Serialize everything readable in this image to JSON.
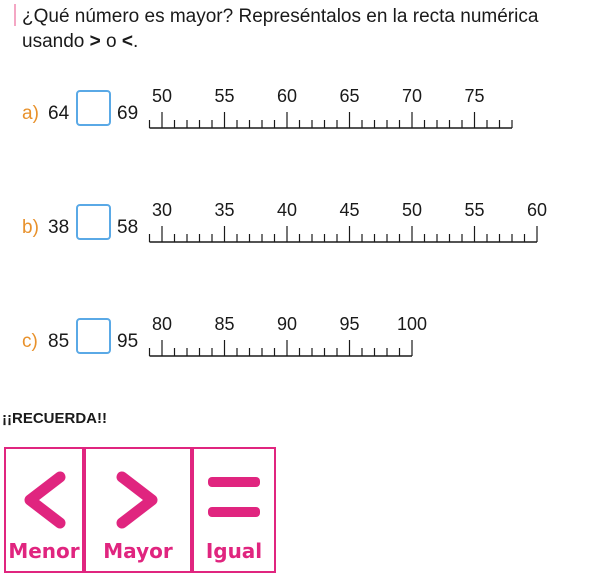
{
  "question": {
    "line1": "¿Qué número es mayor? Represéntalos en la recta numérica",
    "line2_prefix": "usando",
    "gt": ">",
    "conj": "o",
    "lt": "<",
    "end": "."
  },
  "exercises": [
    {
      "label": "a)",
      "left": "64",
      "right": "69",
      "ticks": [
        "50",
        "55",
        "60",
        "65",
        "70",
        "75"
      ]
    },
    {
      "label": "b)",
      "left": "38",
      "right": "58",
      "ticks": [
        "30",
        "35",
        "40",
        "45",
        "50",
        "55",
        "60"
      ]
    },
    {
      "label": "c)",
      "left": "85",
      "right": "95",
      "ticks": [
        "80",
        "85",
        "90",
        "95",
        "100"
      ]
    }
  ],
  "reminder": {
    "title": "¡¡RECUERDA!!",
    "cards": [
      {
        "symbol": "<",
        "label": "Menor"
      },
      {
        "symbol": ">",
        "label": "Mayor"
      },
      {
        "symbol": "=",
        "label": "Igual"
      }
    ]
  },
  "colors": {
    "label_orange": "#e8912b",
    "box_blue": "#5aa9e6",
    "pink": "#e0257f"
  }
}
